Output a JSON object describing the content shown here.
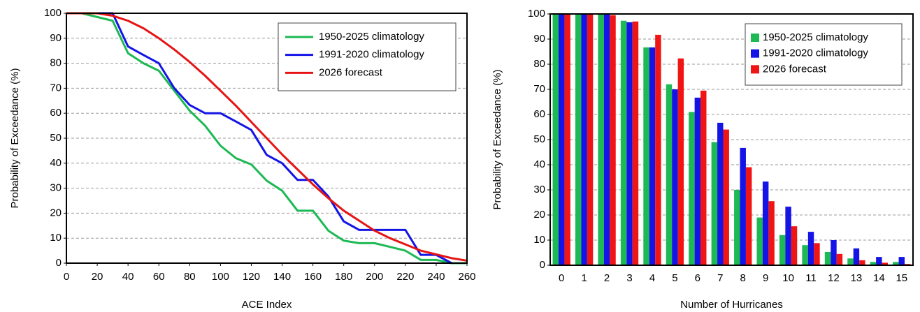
{
  "chart_data": [
    {
      "type": "line",
      "xlabel": "ACE Index",
      "ylabel": "Probability of Exceedance (%)",
      "x": [
        0,
        10,
        20,
        30,
        40,
        50,
        60,
        70,
        80,
        90,
        100,
        110,
        120,
        130,
        140,
        150,
        160,
        170,
        180,
        190,
        200,
        210,
        220,
        230,
        240,
        250,
        260
      ],
      "series": [
        {
          "name": "1950-2025 climatology",
          "color": "#1db954",
          "values": [
            100,
            100,
            98.5,
            97,
            84,
            80,
            77,
            69,
            61,
            55,
            47,
            42,
            39.5,
            33,
            29,
            21,
            21,
            13,
            9,
            8,
            8,
            6.5,
            5,
            1.3,
            1.3,
            0,
            0
          ]
        },
        {
          "name": "1991-2020 climatology",
          "color": "#1414e6",
          "values": [
            100,
            100,
            100,
            100,
            86.7,
            83.3,
            80,
            70,
            63.3,
            60,
            60,
            56.7,
            53.3,
            43.3,
            40,
            33.3,
            33.3,
            26.7,
            16.7,
            13.3,
            13.3,
            13.3,
            13.3,
            3.3,
            3.3,
            0,
            null
          ]
        },
        {
          "name": "2026 forecast",
          "color": "#e61414",
          "values": [
            100,
            100,
            100,
            99,
            97,
            94,
            90,
            85.5,
            80.5,
            75,
            69,
            63,
            56.5,
            50,
            43.5,
            37.5,
            31.5,
            26,
            21,
            17,
            13,
            10,
            7.5,
            5,
            3.5,
            2,
            1
          ]
        }
      ],
      "xlim": [
        0,
        260
      ],
      "xticks": [
        0,
        20,
        40,
        60,
        80,
        100,
        120,
        140,
        160,
        180,
        200,
        220,
        240,
        260
      ],
      "ylim": [
        0,
        100
      ],
      "yticks": [
        0,
        10,
        20,
        30,
        40,
        50,
        60,
        70,
        80,
        90,
        100
      ],
      "grid": true,
      "legend": "upper right"
    },
    {
      "type": "bar",
      "xlabel": "Number of Hurricanes",
      "ylabel": "Probability of Exceedance (%)",
      "categories": [
        "0",
        "1",
        "2",
        "3",
        "4",
        "5",
        "6",
        "7",
        "8",
        "9",
        "10",
        "11",
        "12",
        "13",
        "14",
        "15"
      ],
      "series": [
        {
          "name": "1950-2025 climatology",
          "color": "#1db954",
          "values": [
            100,
            100,
            100,
            97.3,
            86.7,
            72,
            61,
            49,
            30,
            19,
            12,
            8,
            5.3,
            2.7,
            1.3,
            1.3
          ]
        },
        {
          "name": "1991-2020 climatology",
          "color": "#1414e6",
          "values": [
            100,
            100,
            100,
            96.7,
            86.7,
            70,
            66.7,
            56.7,
            46.7,
            33.3,
            23.3,
            13.3,
            10,
            6.7,
            3.3,
            3.3
          ]
        },
        {
          "name": "2026 forecast",
          "color": "#f01414",
          "values": [
            100,
            100,
            99.5,
            97,
            91.7,
            82.3,
            69.5,
            54,
            39,
            25.5,
            15.5,
            8.8,
            4.5,
            2,
            1,
            0.5
          ]
        }
      ],
      "ylim": [
        0,
        100
      ],
      "yticks": [
        0,
        10,
        20,
        30,
        40,
        50,
        60,
        70,
        80,
        90,
        100
      ],
      "grid": true,
      "legend": "upper right"
    }
  ]
}
